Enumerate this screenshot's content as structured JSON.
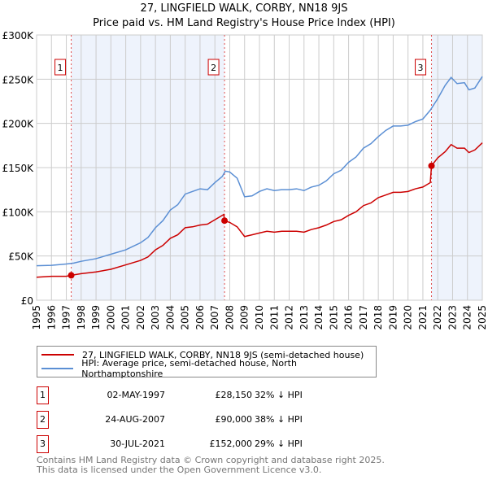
{
  "header": {
    "title": "27, LINGFIELD WALK, CORBY, NN18 9JS",
    "subtitle": "Price paid vs. HM Land Registry's House Price Index (HPI)"
  },
  "chart_data": {
    "type": "line",
    "title": "27, LINGFIELD WALK, CORBY, NN18 9JS",
    "subtitle": "Price paid vs. HM Land Registry's House Price Index (HPI)",
    "xlim": [
      1995,
      2025
    ],
    "ylim": [
      0,
      300000
    ],
    "x_ticks": [
      "1995",
      "1996",
      "1997",
      "1998",
      "1999",
      "2000",
      "2001",
      "2002",
      "2003",
      "2004",
      "2005",
      "2006",
      "2007",
      "2008",
      "2009",
      "2010",
      "2011",
      "2012",
      "2013",
      "2014",
      "2015",
      "2016",
      "2017",
      "2018",
      "2019",
      "2020",
      "2021",
      "2022",
      "2023",
      "2024",
      "2025"
    ],
    "y_ticks": [
      {
        "v": 0,
        "label": "£0"
      },
      {
        "v": 50000,
        "label": "£50K"
      },
      {
        "v": 100000,
        "label": "£100K"
      },
      {
        "v": 150000,
        "label": "£150K"
      },
      {
        "v": 200000,
        "label": "£200K"
      },
      {
        "v": 250000,
        "label": "£250K"
      },
      {
        "v": 300000,
        "label": "£300K"
      }
    ],
    "grid": true,
    "colors": {
      "property": "#cc0000",
      "hpi": "#5b8fd4",
      "shade": "#eef3fc"
    },
    "shaded_ranges": [
      [
        1997.33,
        2007.65
      ],
      [
        2021.58,
        2025
      ]
    ],
    "series": [
      {
        "name": "27, LINGFIELD WALK, CORBY, NN18 9JS (semi-detached house)",
        "color": "#cc0000",
        "x": [
          1995,
          1996,
          1997,
          1997.33,
          1998,
          1999,
          2000,
          2001,
          2002,
          2002.5,
          2003,
          2003.5,
          2004,
          2004.5,
          2005,
          2005.5,
          2006,
          2006.5,
          2007,
          2007.6,
          2007.65,
          2008,
          2008.5,
          2009,
          2009.5,
          2010,
          2010.5,
          2011,
          2011.5,
          2012,
          2012.5,
          2013,
          2013.5,
          2014,
          2014.5,
          2015,
          2015.5,
          2016,
          2016.5,
          2017,
          2017.5,
          2018,
          2018.5,
          2019,
          2019.5,
          2020,
          2020.5,
          2021,
          2021.5,
          2021.58,
          2022,
          2022.5,
          2022.9,
          2023.3,
          2023.8,
          2024.1,
          2024.5,
          2025
        ],
        "y": [
          26000,
          27000,
          27000,
          28150,
          30000,
          32000,
          35000,
          40000,
          45000,
          49000,
          57000,
          62000,
          70000,
          74000,
          82000,
          83000,
          85000,
          86000,
          91000,
          97000,
          90000,
          88000,
          83000,
          72000,
          74000,
          76000,
          78000,
          77000,
          78000,
          78000,
          78000,
          77000,
          80000,
          82000,
          85000,
          89000,
          91000,
          96000,
          100000,
          107000,
          110000,
          116000,
          119000,
          122000,
          122000,
          123000,
          126000,
          128000,
          133000,
          152000,
          161000,
          168000,
          176000,
          172000,
          172000,
          167000,
          170000,
          178000
        ]
      },
      {
        "name": "HPI: Average price, semi-detached house, North Northamptonshire",
        "color": "#5b8fd4",
        "x": [
          1995,
          1996,
          1997,
          1997.5,
          1998,
          1999,
          2000,
          2001,
          2001.5,
          2002,
          2002.5,
          2003,
          2003.5,
          2004,
          2004.5,
          2005,
          2005.5,
          2006,
          2006.5,
          2007,
          2007.5,
          2007.7,
          2008,
          2008.5,
          2009,
          2009.5,
          2010,
          2010.5,
          2011,
          2011.5,
          2012,
          2012.5,
          2013,
          2013.5,
          2014,
          2014.5,
          2015,
          2015.5,
          2016,
          2016.5,
          2017,
          2017.5,
          2018,
          2018.5,
          2019,
          2019.5,
          2020,
          2020.5,
          2021,
          2021.5,
          2022,
          2022.5,
          2022.9,
          2023.3,
          2023.8,
          2024.1,
          2024.5,
          2025
        ],
        "y": [
          39000,
          39500,
          41000,
          42000,
          44000,
          47000,
          52000,
          57000,
          61000,
          65000,
          71000,
          82000,
          90000,
          102000,
          108000,
          120000,
          123000,
          126000,
          125000,
          133000,
          140000,
          146000,
          145000,
          138000,
          117000,
          118000,
          123000,
          126000,
          124000,
          125000,
          125000,
          126000,
          124000,
          128000,
          130000,
          135000,
          143000,
          147000,
          156000,
          162000,
          172000,
          177000,
          185000,
          192000,
          197000,
          197000,
          198000,
          202000,
          205000,
          215000,
          228000,
          243000,
          252000,
          245000,
          246000,
          238000,
          240000,
          253000
        ]
      }
    ],
    "annotations": [
      {
        "label": "1",
        "x": 1997.33,
        "y": 28150
      },
      {
        "label": "2",
        "x": 2007.65,
        "y": 90000
      },
      {
        "label": "3",
        "x": 2021.58,
        "y": 152000
      }
    ],
    "legend_position": "below"
  },
  "legend": {
    "property": "27, LINGFIELD WALK, CORBY, NN18 9JS (semi-detached house)",
    "hpi": "HPI: Average price, semi-detached house, North Northamptonshire"
  },
  "transactions": [
    {
      "num": "1",
      "date": "02-MAY-1997",
      "price": "£28,150",
      "hpi": "32% ↓ HPI"
    },
    {
      "num": "2",
      "date": "24-AUG-2007",
      "price": "£90,000",
      "hpi": "38% ↓ HPI"
    },
    {
      "num": "3",
      "date": "30-JUL-2021",
      "price": "£152,000",
      "hpi": "29% ↓ HPI"
    }
  ],
  "footer": {
    "line1": "Contains HM Land Registry data © Crown copyright and database right 2025.",
    "line2": "This data is licensed under the Open Government Licence v3.0."
  }
}
